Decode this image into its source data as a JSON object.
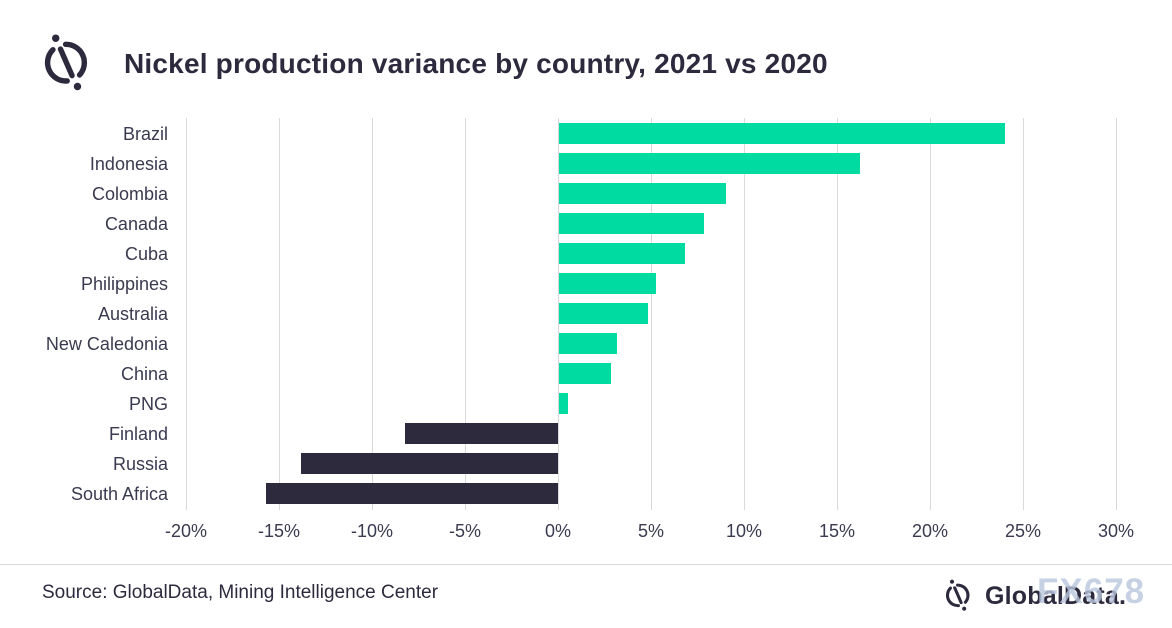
{
  "header": {
    "title": "Nickel production variance by country, 2021 vs 2020"
  },
  "chart_data": {
    "type": "bar",
    "orientation": "horizontal",
    "title": "Nickel production variance by country, 2021 vs 2020",
    "categories": [
      "Brazil",
      "Indonesia",
      "Colombia",
      "Canada",
      "Cuba",
      "Philippines",
      "Australia",
      "New Caledonia",
      "China",
      "PNG",
      "Finland",
      "Russia",
      "South Africa"
    ],
    "values": [
      24.0,
      16.2,
      9.0,
      7.8,
      6.8,
      5.2,
      4.8,
      3.1,
      2.8,
      0.5,
      -8.2,
      -13.8,
      -15.7
    ],
    "unit": "%",
    "xlim": [
      -20,
      30
    ],
    "x_tick_step": 5,
    "x_tick_labels": [
      "-20%",
      "-15%",
      "-10%",
      "-5%",
      "0%",
      "5%",
      "10%",
      "15%",
      "20%",
      "25%",
      "30%"
    ],
    "grid": "vertical-gridlines",
    "legend": "none",
    "colors": {
      "positive_bar": "#00DBA2",
      "negative_bar": "#2E2A3E",
      "gridline": "#D9D9D9",
      "axis_text": "#3A3A50",
      "title_text": "#2D2A3E"
    }
  },
  "footer": {
    "source": "Source: GlobalData, Mining Intelligence Center",
    "brand": "GlobalData.",
    "watermark": "FX678"
  }
}
